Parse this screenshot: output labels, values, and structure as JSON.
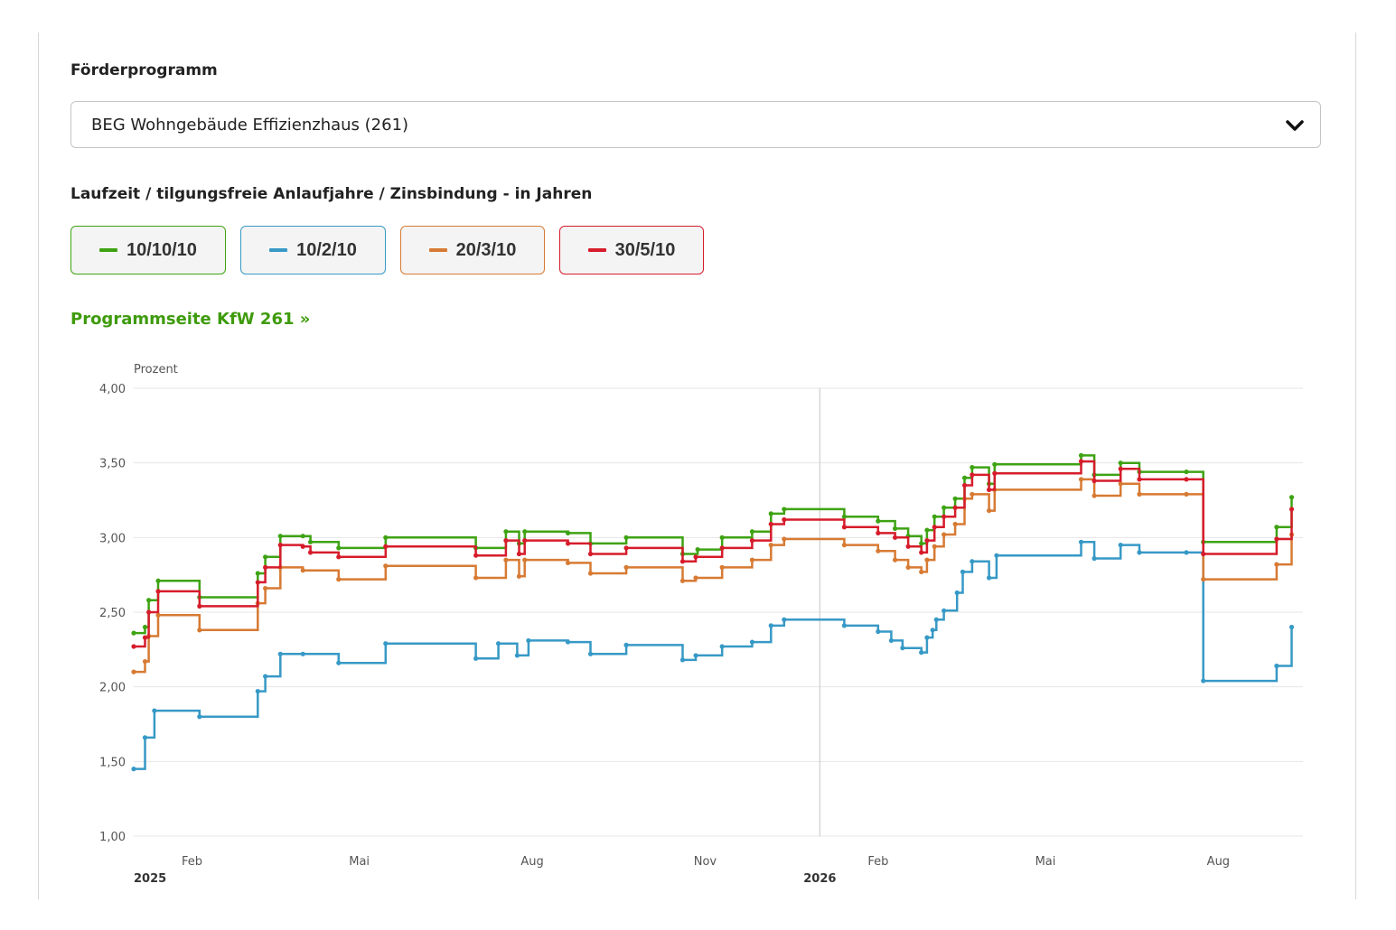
{
  "form": {
    "program_label": "Förderprogramm",
    "program_select": {
      "value": "BEG Wohngebäude Effizienzhaus (261)",
      "arrow_icon": "chevron-down-icon"
    },
    "runtime_label": "Laufzeit / tilgungsfreie Anlaufjahre / Zinsbindung - in Jahren",
    "link_text": "Programmseite KfW 261 »",
    "link_color": "#3e9b0c"
  },
  "chart_data": {
    "type": "line",
    "step": true,
    "ylabel": "Prozent",
    "ylim": [
      1.0,
      4.0
    ],
    "yticks": [
      "4,00",
      "3,50",
      "3,00",
      "2,50",
      "2,00",
      "1,50",
      "1,00"
    ],
    "xlim": [
      "2025-01-01",
      "2026-09-15"
    ],
    "xticks": [
      {
        "date": "2025-02-01",
        "label": "Feb",
        "year": "2025"
      },
      {
        "date": "2025-05-01",
        "label": "Mai"
      },
      {
        "date": "2025-08-01",
        "label": "Aug"
      },
      {
        "date": "2025-11-01",
        "label": "Nov"
      },
      {
        "date": "2026-02-01",
        "label": "Feb",
        "year": "2026"
      },
      {
        "date": "2026-05-01",
        "label": "Mai"
      },
      {
        "date": "2026-08-01",
        "label": "Aug"
      }
    ],
    "crosshair_date": "2026-01-01",
    "grid": true,
    "legend_position": "top",
    "series": [
      {
        "name": "10/10/10",
        "color": "#3ea313",
        "points": [
          [
            "2025-01-01",
            2.36
          ],
          [
            "2025-01-07",
            2.4
          ],
          [
            "2025-01-09",
            2.58
          ],
          [
            "2025-01-14",
            2.71
          ],
          [
            "2025-02-05",
            2.6
          ],
          [
            "2025-03-08",
            2.76
          ],
          [
            "2025-03-12",
            2.87
          ],
          [
            "2025-03-20",
            3.01
          ],
          [
            "2025-04-01",
            3.01
          ],
          [
            "2025-04-05",
            2.97
          ],
          [
            "2025-04-20",
            2.93
          ],
          [
            "2025-05-15",
            3.0
          ],
          [
            "2025-07-02",
            2.93
          ],
          [
            "2025-07-18",
            3.04
          ],
          [
            "2025-07-25",
            2.96
          ],
          [
            "2025-07-28",
            3.04
          ],
          [
            "2025-08-20",
            3.03
          ],
          [
            "2025-09-01",
            2.96
          ],
          [
            "2025-09-20",
            3.0
          ],
          [
            "2025-10-20",
            2.89
          ],
          [
            "2025-10-28",
            2.92
          ],
          [
            "2025-11-10",
            3.0
          ],
          [
            "2025-11-26",
            3.04
          ],
          [
            "2025-12-06",
            3.16
          ],
          [
            "2025-12-13",
            3.19
          ],
          [
            "2026-01-14",
            3.14
          ],
          [
            "2026-02-01",
            3.11
          ],
          [
            "2026-02-10",
            3.06
          ],
          [
            "2026-02-17",
            3.01
          ],
          [
            "2026-02-24",
            2.96
          ],
          [
            "2026-02-27",
            3.05
          ],
          [
            "2026-03-03",
            3.14
          ],
          [
            "2026-03-08",
            3.2
          ],
          [
            "2026-03-14",
            3.26
          ],
          [
            "2026-03-19",
            3.4
          ],
          [
            "2026-03-23",
            3.47
          ],
          [
            "2026-04-01",
            3.36
          ],
          [
            "2026-04-04",
            3.49
          ],
          [
            "2026-05-20",
            3.55
          ],
          [
            "2026-05-27",
            3.42
          ],
          [
            "2026-06-10",
            3.5
          ],
          [
            "2026-06-20",
            3.44
          ],
          [
            "2026-07-15",
            3.44
          ],
          [
            "2026-07-24",
            2.97
          ],
          [
            "2026-09-01",
            3.07
          ],
          [
            "2026-09-09",
            3.27
          ]
        ]
      },
      {
        "name": "10/2/10",
        "color": "#3799c6",
        "points": [
          [
            "2025-01-01",
            1.45
          ],
          [
            "2025-01-07",
            1.66
          ],
          [
            "2025-01-12",
            1.84
          ],
          [
            "2025-02-05",
            1.8
          ],
          [
            "2025-03-08",
            1.97
          ],
          [
            "2025-03-12",
            2.07
          ],
          [
            "2025-03-20",
            2.22
          ],
          [
            "2025-04-01",
            2.22
          ],
          [
            "2025-04-20",
            2.16
          ],
          [
            "2025-05-15",
            2.29
          ],
          [
            "2025-07-02",
            2.19
          ],
          [
            "2025-07-14",
            2.29
          ],
          [
            "2025-07-24",
            2.21
          ],
          [
            "2025-07-30",
            2.31
          ],
          [
            "2025-08-20",
            2.3
          ],
          [
            "2025-09-01",
            2.22
          ],
          [
            "2025-09-20",
            2.28
          ],
          [
            "2025-10-20",
            2.18
          ],
          [
            "2025-10-27",
            2.21
          ],
          [
            "2025-11-10",
            2.27
          ],
          [
            "2025-11-26",
            2.3
          ],
          [
            "2025-12-06",
            2.41
          ],
          [
            "2025-12-13",
            2.45
          ],
          [
            "2026-01-14",
            2.41
          ],
          [
            "2026-02-01",
            2.37
          ],
          [
            "2026-02-08",
            2.31
          ],
          [
            "2026-02-14",
            2.26
          ],
          [
            "2026-02-24",
            2.23
          ],
          [
            "2026-02-27",
            2.33
          ],
          [
            "2026-03-02",
            2.38
          ],
          [
            "2026-03-04",
            2.45
          ],
          [
            "2026-03-08",
            2.51
          ],
          [
            "2026-03-15",
            2.63
          ],
          [
            "2026-03-18",
            2.77
          ],
          [
            "2026-03-23",
            2.84
          ],
          [
            "2026-04-01",
            2.73
          ],
          [
            "2026-04-05",
            2.88
          ],
          [
            "2026-05-20",
            2.97
          ],
          [
            "2026-05-27",
            2.86
          ],
          [
            "2026-06-10",
            2.95
          ],
          [
            "2026-06-20",
            2.9
          ],
          [
            "2026-07-15",
            2.9
          ],
          [
            "2026-07-24",
            2.04
          ],
          [
            "2026-09-01",
            2.14
          ],
          [
            "2026-09-09",
            2.4
          ]
        ]
      },
      {
        "name": "20/3/10",
        "color": "#d77a33",
        "points": [
          [
            "2025-01-01",
            2.1
          ],
          [
            "2025-01-07",
            2.17
          ],
          [
            "2025-01-09",
            2.34
          ],
          [
            "2025-01-14",
            2.48
          ],
          [
            "2025-02-05",
            2.38
          ],
          [
            "2025-03-08",
            2.56
          ],
          [
            "2025-03-12",
            2.66
          ],
          [
            "2025-03-20",
            2.8
          ],
          [
            "2025-04-01",
            2.78
          ],
          [
            "2025-04-20",
            2.72
          ],
          [
            "2025-05-15",
            2.81
          ],
          [
            "2025-07-02",
            2.73
          ],
          [
            "2025-07-18",
            2.85
          ],
          [
            "2025-07-25",
            2.74
          ],
          [
            "2025-07-28",
            2.85
          ],
          [
            "2025-08-20",
            2.83
          ],
          [
            "2025-09-01",
            2.76
          ],
          [
            "2025-09-20",
            2.8
          ],
          [
            "2025-10-20",
            2.71
          ],
          [
            "2025-10-27",
            2.73
          ],
          [
            "2025-11-10",
            2.8
          ],
          [
            "2025-11-26",
            2.85
          ],
          [
            "2025-12-06",
            2.95
          ],
          [
            "2025-12-13",
            2.99
          ],
          [
            "2026-01-14",
            2.95
          ],
          [
            "2026-02-01",
            2.91
          ],
          [
            "2026-02-10",
            2.85
          ],
          [
            "2026-02-17",
            2.8
          ],
          [
            "2026-02-24",
            2.77
          ],
          [
            "2026-02-27",
            2.85
          ],
          [
            "2026-03-03",
            2.94
          ],
          [
            "2026-03-08",
            3.02
          ],
          [
            "2026-03-14",
            3.09
          ],
          [
            "2026-03-19",
            3.26
          ],
          [
            "2026-03-23",
            3.29
          ],
          [
            "2026-04-01",
            3.18
          ],
          [
            "2026-04-04",
            3.32
          ],
          [
            "2026-05-20",
            3.39
          ],
          [
            "2026-05-27",
            3.28
          ],
          [
            "2026-06-10",
            3.36
          ],
          [
            "2026-06-20",
            3.29
          ],
          [
            "2026-07-15",
            3.29
          ],
          [
            "2026-07-24",
            2.72
          ],
          [
            "2026-09-01",
            2.82
          ],
          [
            "2026-09-09",
            3.02
          ]
        ]
      },
      {
        "name": "30/5/10",
        "color": "#d61c2b",
        "points": [
          [
            "2025-01-01",
            2.27
          ],
          [
            "2025-01-07",
            2.33
          ],
          [
            "2025-01-09",
            2.5
          ],
          [
            "2025-01-14",
            2.64
          ],
          [
            "2025-02-05",
            2.54
          ],
          [
            "2025-03-08",
            2.7
          ],
          [
            "2025-03-12",
            2.8
          ],
          [
            "2025-03-20",
            2.95
          ],
          [
            "2025-04-01",
            2.94
          ],
          [
            "2025-04-05",
            2.9
          ],
          [
            "2025-04-20",
            2.87
          ],
          [
            "2025-05-15",
            2.94
          ],
          [
            "2025-07-02",
            2.88
          ],
          [
            "2025-07-18",
            2.98
          ],
          [
            "2025-07-25",
            2.89
          ],
          [
            "2025-07-28",
            2.98
          ],
          [
            "2025-08-20",
            2.96
          ],
          [
            "2025-09-01",
            2.89
          ],
          [
            "2025-09-20",
            2.93
          ],
          [
            "2025-10-20",
            2.84
          ],
          [
            "2025-10-27",
            2.87
          ],
          [
            "2025-11-10",
            2.93
          ],
          [
            "2025-11-26",
            2.98
          ],
          [
            "2025-12-06",
            3.09
          ],
          [
            "2025-12-13",
            3.12
          ],
          [
            "2026-01-14",
            3.07
          ],
          [
            "2026-02-01",
            3.03
          ],
          [
            "2026-02-10",
            3.0
          ],
          [
            "2026-02-17",
            2.94
          ],
          [
            "2026-02-24",
            2.9
          ],
          [
            "2026-02-27",
            2.98
          ],
          [
            "2026-03-03",
            3.07
          ],
          [
            "2026-03-08",
            3.14
          ],
          [
            "2026-03-14",
            3.2
          ],
          [
            "2026-03-19",
            3.35
          ],
          [
            "2026-03-23",
            3.42
          ],
          [
            "2026-04-01",
            3.32
          ],
          [
            "2026-04-04",
            3.43
          ],
          [
            "2026-05-20",
            3.51
          ],
          [
            "2026-05-27",
            3.38
          ],
          [
            "2026-06-10",
            3.46
          ],
          [
            "2026-06-20",
            3.39
          ],
          [
            "2026-07-15",
            3.39
          ],
          [
            "2026-07-24",
            2.89
          ],
          [
            "2026-09-01",
            2.99
          ],
          [
            "2026-09-09",
            3.19
          ]
        ]
      }
    ]
  }
}
